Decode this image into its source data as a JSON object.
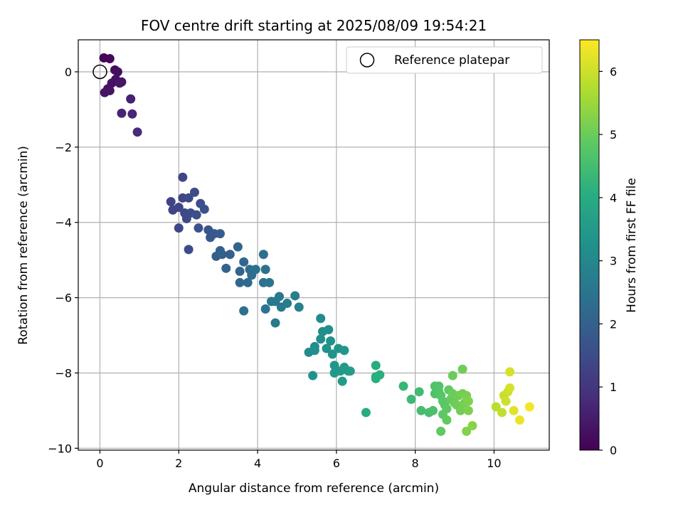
{
  "chart_data": {
    "type": "scatter",
    "title": "FOV centre drift starting at 2025/08/09 19:54:21",
    "xlabel": "Angular distance from reference (arcmin)",
    "ylabel": "Rotation from reference (arcmin)",
    "xlim": [
      -0.55,
      11.4
    ],
    "ylim": [
      -10.05,
      0.85
    ],
    "xticks": [
      0,
      2,
      4,
      6,
      8,
      10
    ],
    "yticks": [
      0,
      -2,
      -4,
      -6,
      -8,
      -10
    ],
    "xtick_labels": [
      "0",
      "2",
      "4",
      "6",
      "8",
      "10"
    ],
    "ytick_labels": [
      "0",
      "−2",
      "−4",
      "−6",
      "−8",
      "−10"
    ],
    "grid": true,
    "colormap": "viridis",
    "colorbar": {
      "label": "Hours from first FF file",
      "range": [
        0,
        6.5
      ],
      "ticks": [
        0,
        1,
        2,
        3,
        4,
        5,
        6
      ],
      "tick_labels": [
        "0",
        "1",
        "2",
        "3",
        "4",
        "5",
        "6"
      ]
    },
    "legend": {
      "position": "top-right",
      "entries": [
        "Reference platepar"
      ]
    },
    "reference": {
      "x": 0,
      "y": 0
    },
    "series": [
      {
        "values": [
          [
            0.1,
            0.37,
            0.1
          ],
          [
            0.25,
            0.35,
            0.15
          ],
          [
            0.38,
            0.05,
            0.2
          ],
          [
            0.45,
            0.0,
            0.25
          ],
          [
            0.4,
            -0.2,
            0.3
          ],
          [
            0.3,
            -0.3,
            0.3
          ],
          [
            0.55,
            -0.27,
            0.35
          ],
          [
            0.2,
            -0.45,
            0.3
          ],
          [
            0.25,
            -0.5,
            0.35
          ],
          [
            0.12,
            -0.55,
            0.35
          ],
          [
            0.5,
            -0.3,
            0.4
          ],
          [
            0.78,
            -0.72,
            0.6
          ],
          [
            0.55,
            -1.1,
            0.65
          ],
          [
            0.82,
            -1.12,
            0.7
          ],
          [
            0.95,
            -1.6,
            0.8
          ],
          [
            2.1,
            -2.8,
            1.35
          ],
          [
            1.8,
            -3.45,
            1.3
          ],
          [
            1.85,
            -3.67,
            1.3
          ],
          [
            2.0,
            -3.6,
            1.35
          ],
          [
            2.1,
            -3.35,
            1.4
          ],
          [
            2.25,
            -3.35,
            1.45
          ],
          [
            2.4,
            -3.2,
            1.5
          ],
          [
            2.15,
            -3.75,
            1.4
          ],
          [
            2.2,
            -3.9,
            1.45
          ],
          [
            2.3,
            -3.75,
            1.5
          ],
          [
            2.45,
            -3.8,
            1.55
          ],
          [
            2.55,
            -3.5,
            1.55
          ],
          [
            2.65,
            -3.65,
            1.6
          ],
          [
            2.0,
            -4.15,
            1.4
          ],
          [
            2.5,
            -4.15,
            1.6
          ],
          [
            2.25,
            -4.72,
            1.5
          ],
          [
            2.75,
            -4.2,
            1.7
          ],
          [
            2.8,
            -4.4,
            1.75
          ],
          [
            2.9,
            -4.3,
            1.8
          ],
          [
            3.05,
            -4.3,
            1.85
          ],
          [
            2.95,
            -4.9,
            1.9
          ],
          [
            3.05,
            -4.75,
            1.95
          ],
          [
            3.1,
            -4.85,
            2.0
          ],
          [
            3.3,
            -4.85,
            2.0
          ],
          [
            3.2,
            -5.22,
            2.05
          ],
          [
            3.5,
            -4.65,
            2.1
          ],
          [
            3.55,
            -5.3,
            2.1
          ],
          [
            3.55,
            -5.6,
            2.15
          ],
          [
            3.65,
            -5.05,
            2.2
          ],
          [
            3.75,
            -5.6,
            2.25
          ],
          [
            3.8,
            -5.25,
            2.3
          ],
          [
            3.85,
            -5.4,
            2.3
          ],
          [
            3.95,
            -5.25,
            2.35
          ],
          [
            4.15,
            -4.85,
            2.35
          ],
          [
            4.15,
            -5.6,
            2.4
          ],
          [
            4.2,
            -5.25,
            2.45
          ],
          [
            4.3,
            -5.6,
            2.5
          ],
          [
            3.65,
            -6.35,
            2.4
          ],
          [
            4.2,
            -6.3,
            2.5
          ],
          [
            4.35,
            -6.1,
            2.55
          ],
          [
            4.45,
            -6.1,
            2.6
          ],
          [
            4.55,
            -5.97,
            2.6
          ],
          [
            4.6,
            -6.25,
            2.65
          ],
          [
            4.75,
            -6.15,
            2.7
          ],
          [
            4.45,
            -6.67,
            2.65
          ],
          [
            4.95,
            -5.95,
            2.75
          ],
          [
            5.05,
            -6.25,
            2.8
          ],
          [
            5.6,
            -6.55,
            3.1
          ],
          [
            5.65,
            -6.9,
            3.15
          ],
          [
            5.8,
            -6.85,
            3.2
          ],
          [
            5.85,
            -7.15,
            3.25
          ],
          [
            5.6,
            -7.1,
            3.2
          ],
          [
            5.75,
            -7.35,
            3.25
          ],
          [
            5.9,
            -7.5,
            3.3
          ],
          [
            5.45,
            -7.3,
            3.15
          ],
          [
            5.3,
            -7.45,
            3.15
          ],
          [
            5.45,
            -7.4,
            3.2
          ],
          [
            6.05,
            -7.35,
            3.35
          ],
          [
            6.2,
            -7.4,
            3.4
          ],
          [
            5.95,
            -7.8,
            3.4
          ],
          [
            6.1,
            -7.95,
            3.45
          ],
          [
            6.2,
            -7.85,
            3.5
          ],
          [
            6.3,
            -7.95,
            3.5
          ],
          [
            5.95,
            -8.0,
            3.45
          ],
          [
            6.15,
            -8.22,
            3.5
          ],
          [
            6.35,
            -7.95,
            3.55
          ],
          [
            5.4,
            -8.07,
            3.3
          ],
          [
            7.0,
            -7.8,
            4.0
          ],
          [
            7.0,
            -8.1,
            4.05
          ],
          [
            7.1,
            -8.05,
            4.1
          ],
          [
            7.0,
            -8.15,
            4.1
          ],
          [
            6.75,
            -9.05,
            4.0
          ],
          [
            7.7,
            -8.35,
            4.3
          ],
          [
            7.9,
            -8.7,
            4.4
          ],
          [
            8.1,
            -8.5,
            4.45
          ],
          [
            8.15,
            -9.0,
            4.5
          ],
          [
            8.35,
            -9.05,
            4.55
          ],
          [
            8.45,
            -9.0,
            4.6
          ],
          [
            8.5,
            -8.55,
            4.65
          ],
          [
            8.5,
            -8.35,
            4.65
          ],
          [
            8.6,
            -8.5,
            4.7
          ],
          [
            8.65,
            -8.6,
            4.75
          ],
          [
            8.7,
            -8.75,
            4.8
          ],
          [
            8.75,
            -8.85,
            4.8
          ],
          [
            8.7,
            -9.1,
            4.85
          ],
          [
            8.8,
            -8.95,
            4.85
          ],
          [
            8.8,
            -9.25,
            4.9
          ],
          [
            8.85,
            -8.45,
            4.9
          ],
          [
            8.9,
            -8.7,
            4.95
          ],
          [
            8.95,
            -8.55,
            5.0
          ],
          [
            9.0,
            -8.8,
            5.0
          ],
          [
            9.05,
            -8.85,
            5.05
          ],
          [
            9.1,
            -8.6,
            5.05
          ],
          [
            9.15,
            -9.0,
            5.1
          ],
          [
            9.2,
            -8.55,
            5.1
          ],
          [
            9.25,
            -8.8,
            5.15
          ],
          [
            9.3,
            -8.6,
            5.15
          ],
          [
            9.35,
            -8.75,
            5.2
          ],
          [
            9.35,
            -9.0,
            5.2
          ],
          [
            9.2,
            -7.9,
            5.05
          ],
          [
            8.95,
            -8.07,
            5.0
          ],
          [
            9.3,
            -9.55,
            5.25
          ],
          [
            9.45,
            -9.4,
            5.3
          ],
          [
            8.65,
            -9.55,
            4.9
          ],
          [
            8.6,
            -8.35,
            4.7
          ],
          [
            10.05,
            -8.9,
            5.8
          ],
          [
            10.2,
            -9.05,
            5.9
          ],
          [
            10.25,
            -8.6,
            5.95
          ],
          [
            10.3,
            -8.75,
            6.0
          ],
          [
            10.35,
            -8.5,
            6.0
          ],
          [
            10.4,
            -7.97,
            6.1
          ],
          [
            10.4,
            -8.4,
            6.1
          ],
          [
            10.5,
            -9.0,
            6.2
          ],
          [
            10.65,
            -9.25,
            6.3
          ],
          [
            10.9,
            -8.9,
            6.4
          ]
        ]
      }
    ]
  }
}
